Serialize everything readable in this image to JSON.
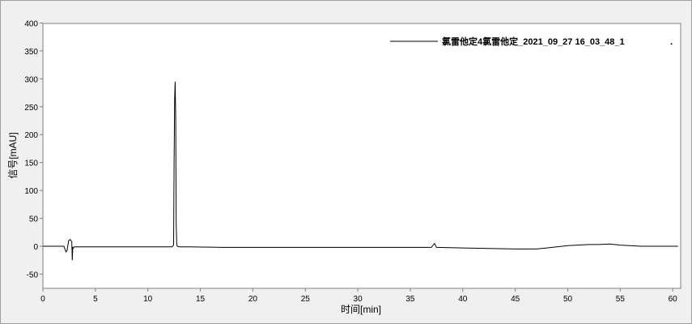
{
  "chart_data": {
    "type": "line",
    "xlabel": "时间[min]",
    "ylabel": "信号[mAU]",
    "xlim": [
      0,
      60.5
    ],
    "ylim": [
      -50,
      400
    ],
    "xticks": [
      0,
      5,
      10,
      15,
      20,
      25,
      30,
      35,
      40,
      45,
      50,
      55,
      60
    ],
    "yticks": [
      -50,
      0,
      50,
      100,
      150,
      200,
      250,
      300,
      350,
      400
    ],
    "grid": false,
    "legend_position": "top-right",
    "series": [
      {
        "name": "氯雷他定4氯雷他定_2021_09_27 16_03_48_1",
        "color": "#000000",
        "x": [
          0,
          2.0,
          2.2,
          2.3,
          2.45,
          2.6,
          2.75,
          2.8,
          2.85,
          2.9,
          3.0,
          3.2,
          5.0,
          12.3,
          12.45,
          12.5,
          12.55,
          12.6,
          12.65,
          12.7,
          12.75,
          12.8,
          13.0,
          14.0,
          17,
          26,
          33,
          37.0,
          37.3,
          37.5,
          40,
          45,
          47,
          48,
          50,
          52,
          53,
          54,
          55,
          57,
          60.5
        ],
        "y": [
          0,
          0,
          -10,
          -8,
          10,
          12,
          8,
          -25,
          -2,
          -3,
          -1,
          -1,
          -1,
          -1,
          2,
          150,
          265,
          295,
          230,
          40,
          3,
          0,
          -1,
          -1,
          -2,
          -2,
          -2,
          -2,
          5,
          -2,
          -3,
          -5,
          -5,
          -3,
          1,
          3,
          3,
          4,
          2,
          0,
          0
        ]
      }
    ],
    "legend_trailing_mark": "."
  }
}
